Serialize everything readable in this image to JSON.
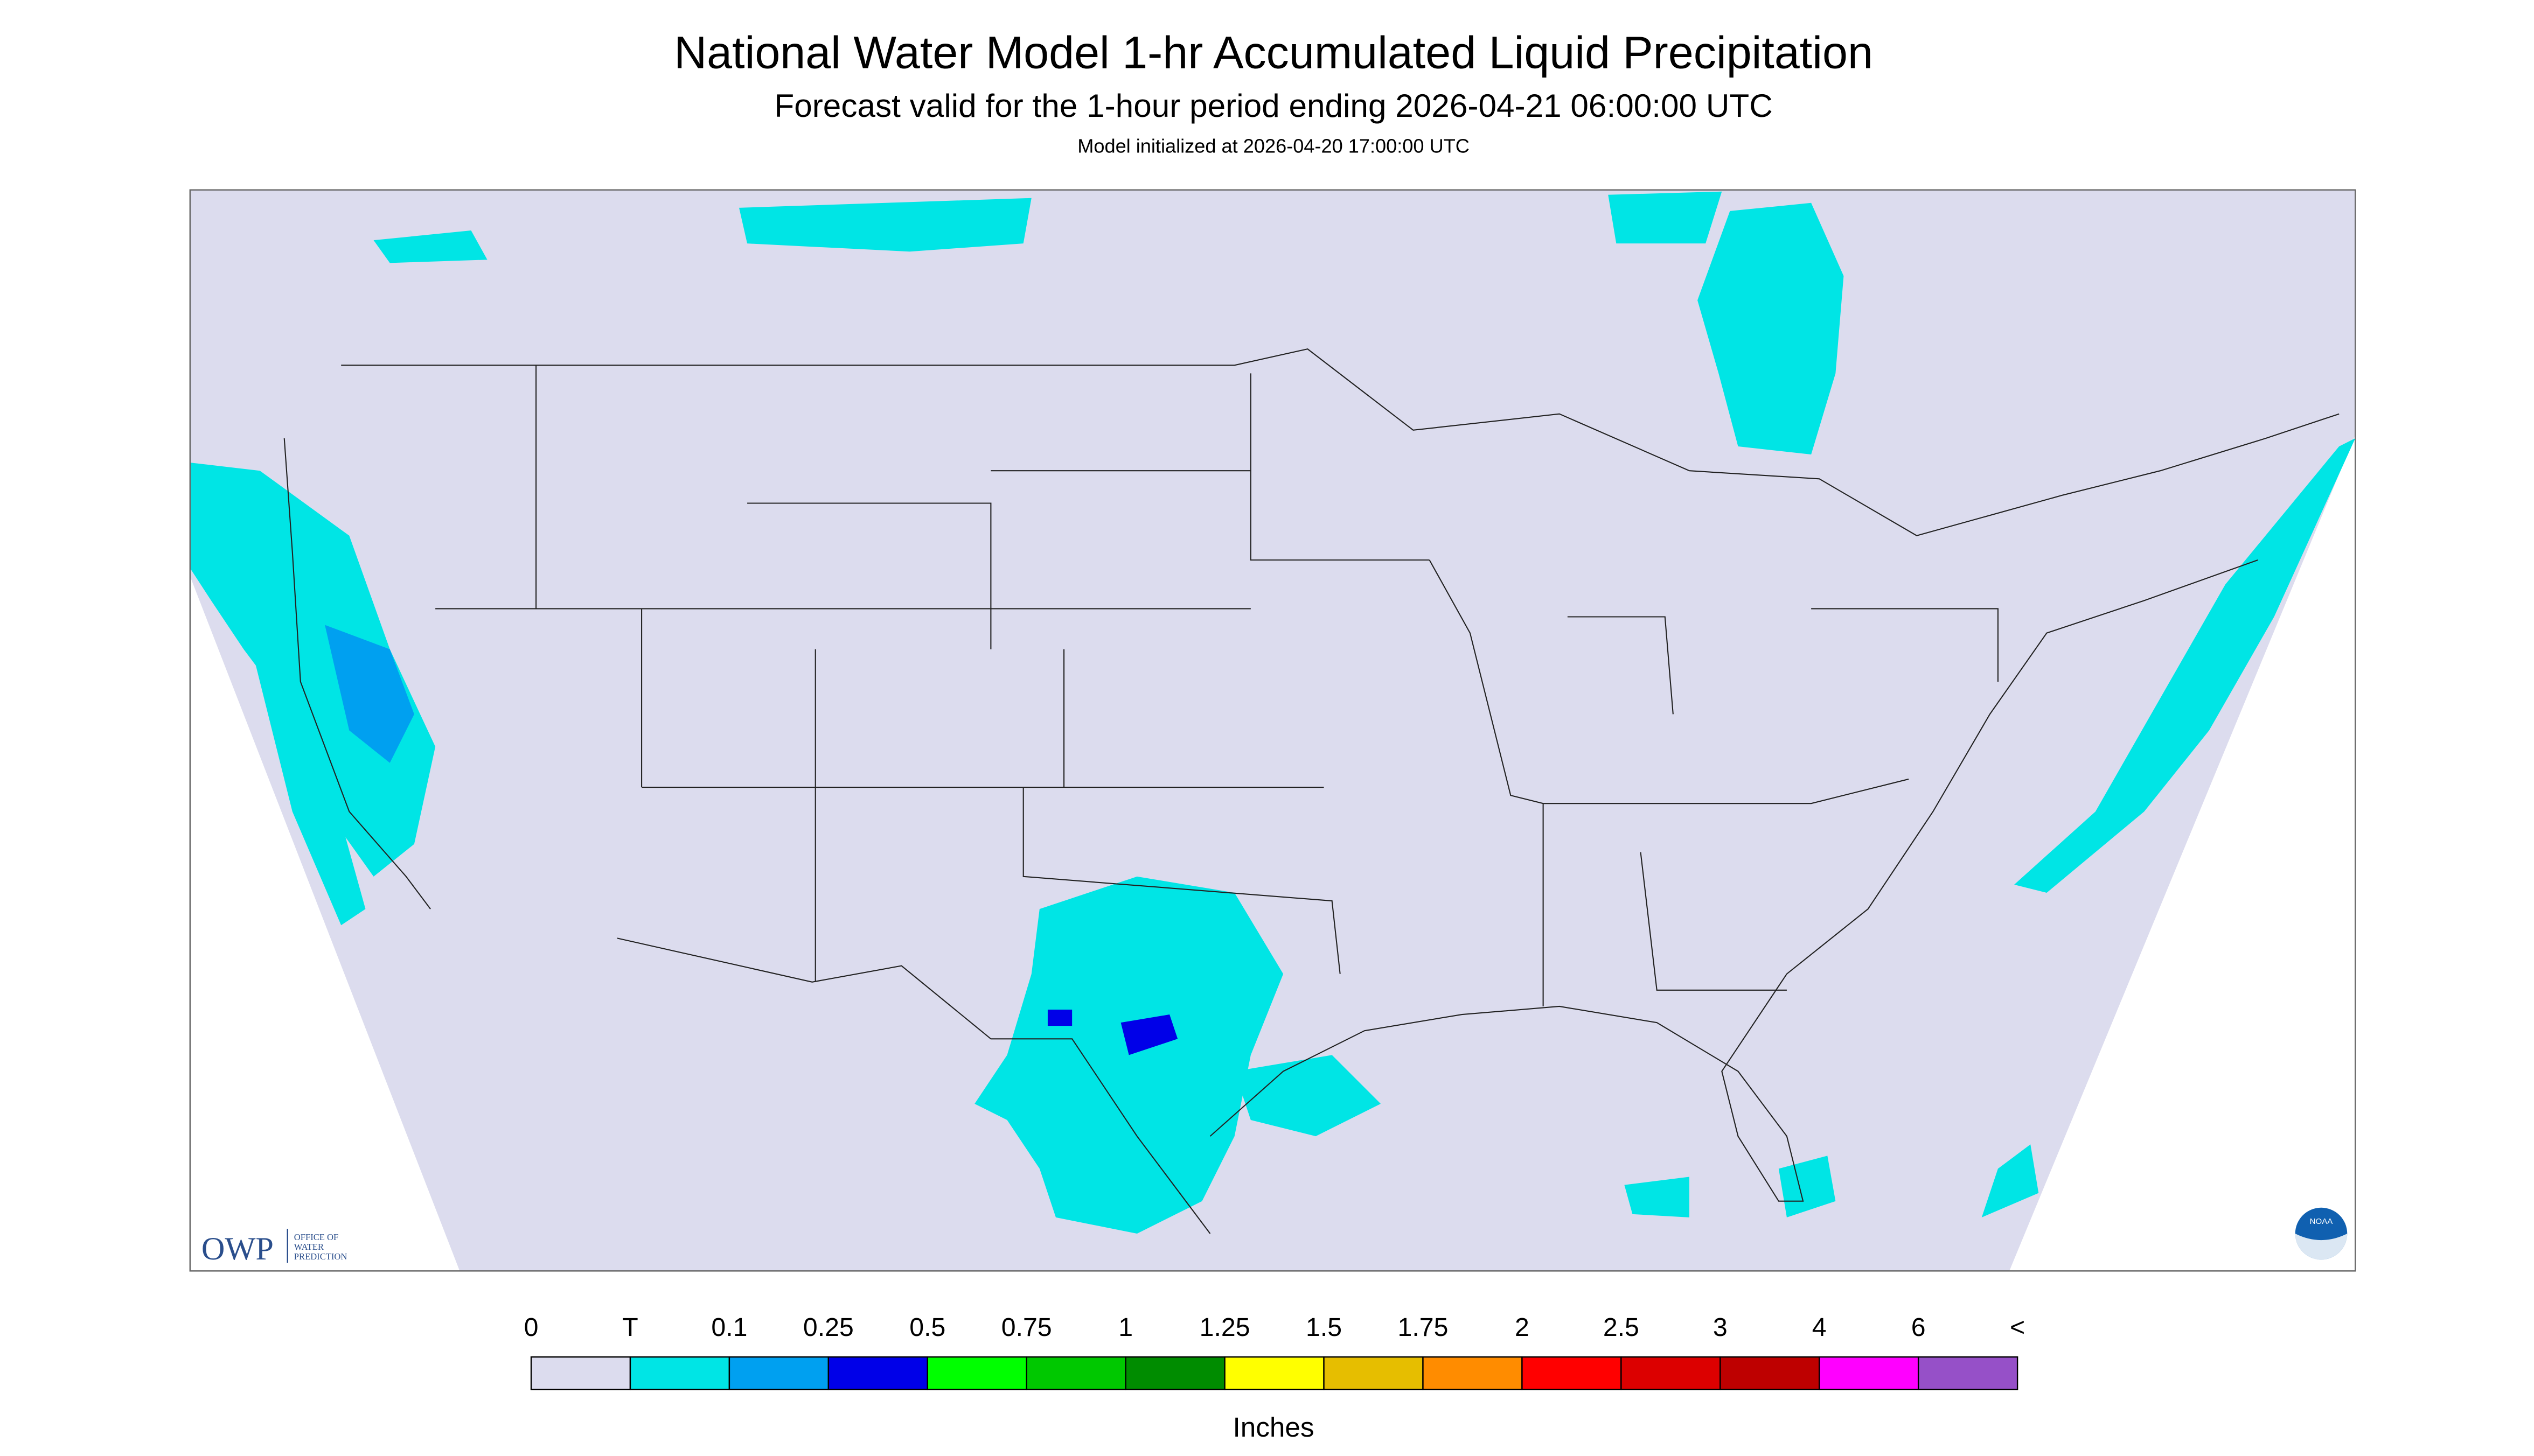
{
  "header": {
    "title": "National Water Model 1-hr Accumulated Liquid Precipitation",
    "subtitle": "Forecast valid for the 1-hour period ending 2026-04-21 06:00:00 UTC",
    "note": "Model initialized at 2026-04-20 17:00:00 UTC"
  },
  "logo": {
    "short": "OWP",
    "lines": [
      "OFFICE OF",
      "WATER",
      "PREDICTION"
    ],
    "badge": "NOAA"
  },
  "legend": {
    "labels": [
      "0",
      "T",
      "0.1",
      "0.25",
      "0.5",
      "0.75",
      "1",
      "1.25",
      "1.5",
      "1.75",
      "2",
      "2.5",
      "3",
      "4",
      "6",
      "<"
    ],
    "colors": [
      "#dcdcee",
      "#00e5e5",
      "#00a0f0",
      "#0000e8",
      "#00ff00",
      "#00c800",
      "#008c00",
      "#ffff00",
      "#e6be00",
      "#ff8c00",
      "#ff0000",
      "#dc0000",
      "#be0000",
      "#ff00ff",
      "#9650c8"
    ],
    "unit": "Inches"
  }
}
